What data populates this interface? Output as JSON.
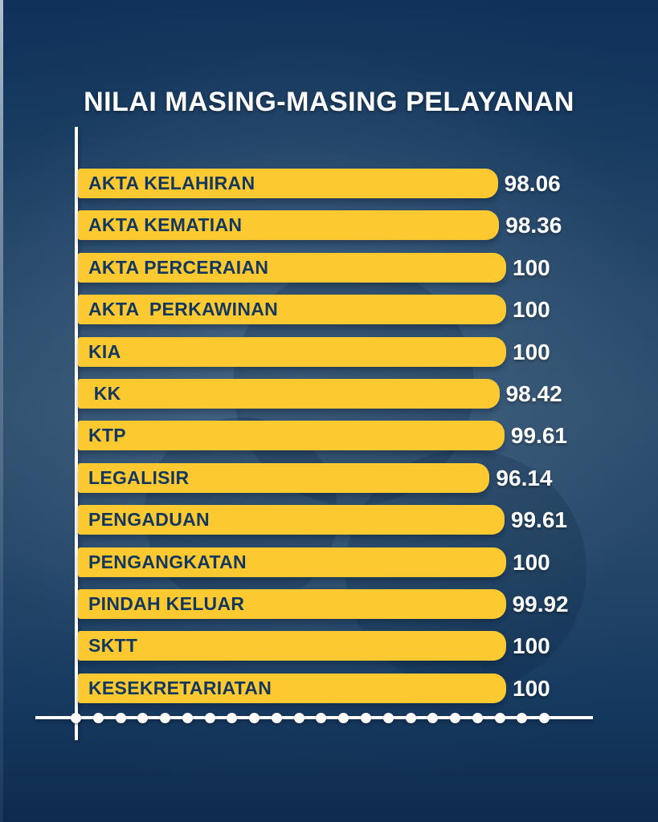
{
  "title": "NILAI MASING-MASING PELAYANAN",
  "chart_data": {
    "type": "bar",
    "orientation": "horizontal",
    "title": "NILAI MASING-MASING PELAYANAN",
    "categories": [
      "AKTA KELAHIRAN",
      "AKTA KEMATIAN",
      "AKTA PERCERAIAN",
      "AKTA  PERKAWINAN",
      "KIA",
      " KK",
      "KTP",
      "LEGALISIR",
      "PENGADUAN",
      "PENGANGKATAN",
      "PINDAH KELUAR",
      "SKTT",
      "KESEKRETARIATAN"
    ],
    "values": [
      98.06,
      98.36,
      100,
      100,
      100,
      98.42,
      99.61,
      96.14,
      99.61,
      100,
      99.92,
      100,
      100
    ],
    "value_labels": [
      "98.06",
      "98.36",
      "100",
      "100",
      "100",
      "98.42",
      "99.61",
      "96.14",
      "99.61",
      "100",
      "99.92",
      "100",
      "100"
    ],
    "xlim": [
      0,
      100
    ],
    "x_ticks": [
      20,
      40,
      60,
      80,
      100
    ],
    "grid": false,
    "legend": "none",
    "colors": {
      "bar": "#FCC930",
      "bar_label_text": "#14375E",
      "value_text": "#FFFFFF",
      "axis": "#FFFFFF",
      "tick_label_text": "#1B3C60",
      "background_center": "#3C5A77",
      "background_edge": "#10315A"
    }
  }
}
